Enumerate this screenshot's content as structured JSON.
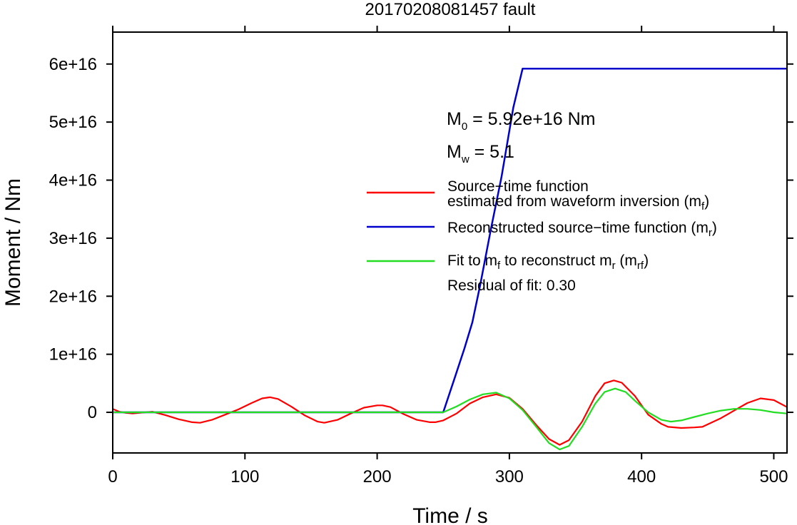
{
  "chart_data": {
    "type": "line",
    "title": "20170208081457 fault",
    "xlabel": "Time / s",
    "ylabel": "Moment / Nm",
    "xlim": [
      0,
      510
    ],
    "ylim": [
      -7000000000000000.0,
      6.55e+16
    ],
    "x_ticks": [
      0,
      100,
      200,
      300,
      400,
      500
    ],
    "x_tick_labels": [
      "0",
      "100",
      "200",
      "300",
      "400",
      "500"
    ],
    "y_ticks": [
      0,
      1e+16,
      2e+16,
      3e+16,
      4e+16,
      5e+16,
      6e+16
    ],
    "y_tick_labels": [
      "0",
      "1e+16",
      "2e+16",
      "3e+16",
      "4e+16",
      "5e+16",
      "6e+16"
    ],
    "grid": false,
    "legend_position": "center-right",
    "series": [
      {
        "name_line1": "Source−time function",
        "name_line2": "estimated from waveform inversion (m",
        "name_sub": "f",
        "name_tail": ")",
        "color": "#ff0000",
        "x": [
          0,
          5,
          10,
          15,
          20,
          30,
          40,
          50,
          60,
          66,
          75,
          85,
          95,
          105,
          113,
          119,
          125,
          135,
          145,
          155,
          160,
          170,
          180,
          190,
          200,
          204,
          210,
          220,
          230,
          240,
          244,
          250,
          260,
          270,
          280,
          290,
          300,
          310,
          320,
          330,
          338,
          345,
          355,
          365,
          372,
          379,
          385,
          395,
          405,
          415,
          420,
          430,
          440,
          446,
          460,
          470,
          480,
          490,
          500,
          510
        ],
        "y": [
          600000000000000.0,
          100000000000000.0,
          -100000000000000.0,
          -200000000000000.0,
          -100000000000000.0,
          100000000000000.0,
          -500000000000000.0,
          -1200000000000000.0,
          -1700000000000000.0,
          -1800000000000000.0,
          -1300000000000000.0,
          -400000000000000.0,
          500000000000000.0,
          1600000000000000.0,
          2400000000000000.0,
          2600000000000000.0,
          2300000000000000.0,
          1000000000000000.0,
          -500000000000000.0,
          -1600000000000000.0,
          -1800000000000000.0,
          -1300000000000000.0,
          -200000000000000.0,
          800000000000000.0,
          1200000000000000.0,
          1200000000000000.0,
          900000000000000.0,
          -300000000000000.0,
          -1300000000000000.0,
          -1700000000000000.0,
          -1700000000000000.0,
          -1400000000000000.0,
          -200000000000000.0,
          1500000000000000.0,
          2600000000000000.0,
          3100000000000000.0,
          2500000000000000.0,
          600000000000000.0,
          -2100000000000000.0,
          -4600000000000000.0,
          -5600000000000000.0,
          -4800000000000000.0,
          -1600000000000000.0,
          2800000000000000.0,
          5000000000000000.0,
          5500000000000000.0,
          5100000000000000.0,
          2800000000000000.0,
          -400000000000000.0,
          -2000000000000000.0,
          -2500000000000000.0,
          -2700000000000000.0,
          -2600000000000000.0,
          -2500000000000000.0,
          -1000000000000000.0,
          300000000000000.0,
          1600000000000000.0,
          2400000000000000.0,
          2100000000000000.0,
          900000000000000.0
        ]
      },
      {
        "name": "Reconstructed source−time function (m",
        "name_sub": "r",
        "name_tail": ")",
        "color": "#0000cc",
        "x": [
          0,
          250,
          258,
          266,
          272,
          278,
          286,
          294,
          303,
          310,
          510
        ],
        "y": [
          0,
          0,
          5500000000000000.0,
          1.1e+16,
          1.55e+16,
          2.2e+16,
          3.15e+16,
          4.05e+16,
          5.25e+16,
          5.92e+16,
          5.92e+16
        ]
      },
      {
        "name": "Fit to m",
        "name_sub": "f",
        "name_mid": " to reconstruct m",
        "name_sub2": "r",
        "name_mid2": " (m",
        "name_sub3": "rf",
        "name_tail": ")",
        "color": "#22dd22",
        "x": [
          0,
          250,
          260,
          270,
          280,
          290,
          300,
          310,
          320,
          330,
          338,
          345,
          355,
          365,
          372,
          380,
          388,
          395,
          405,
          415,
          422,
          430,
          440,
          450,
          460,
          470,
          480,
          490,
          500,
          510
        ],
        "y": [
          0,
          0,
          1000000000000000.0,
          2200000000000000.0,
          3100000000000000.0,
          3400000000000000.0,
          2400000000000000.0,
          400000000000000.0,
          -2400000000000000.0,
          -5300000000000000.0,
          -6400000000000000.0,
          -5800000000000000.0,
          -2500000000000000.0,
          1500000000000000.0,
          3500000000000000.0,
          4100000000000000.0,
          3500000000000000.0,
          2000000000000000.0,
          0,
          -1300000000000000.0,
          -1600000000000000.0,
          -1400000000000000.0,
          -800000000000000.0,
          -200000000000000.0,
          300000000000000.0,
          600000000000000.0,
          600000000000000.0,
          400000000000000.0,
          0,
          -200000000000000.0
        ]
      }
    ],
    "annotations": {
      "m0_sym": "M",
      "m0_sub": "0",
      "m0_text": " = 5.92e+16 Nm",
      "mw_sym": "M",
      "mw_sub": "w",
      "mw_text": " = 5.1",
      "residual": "Residual of fit: 0.30"
    }
  }
}
